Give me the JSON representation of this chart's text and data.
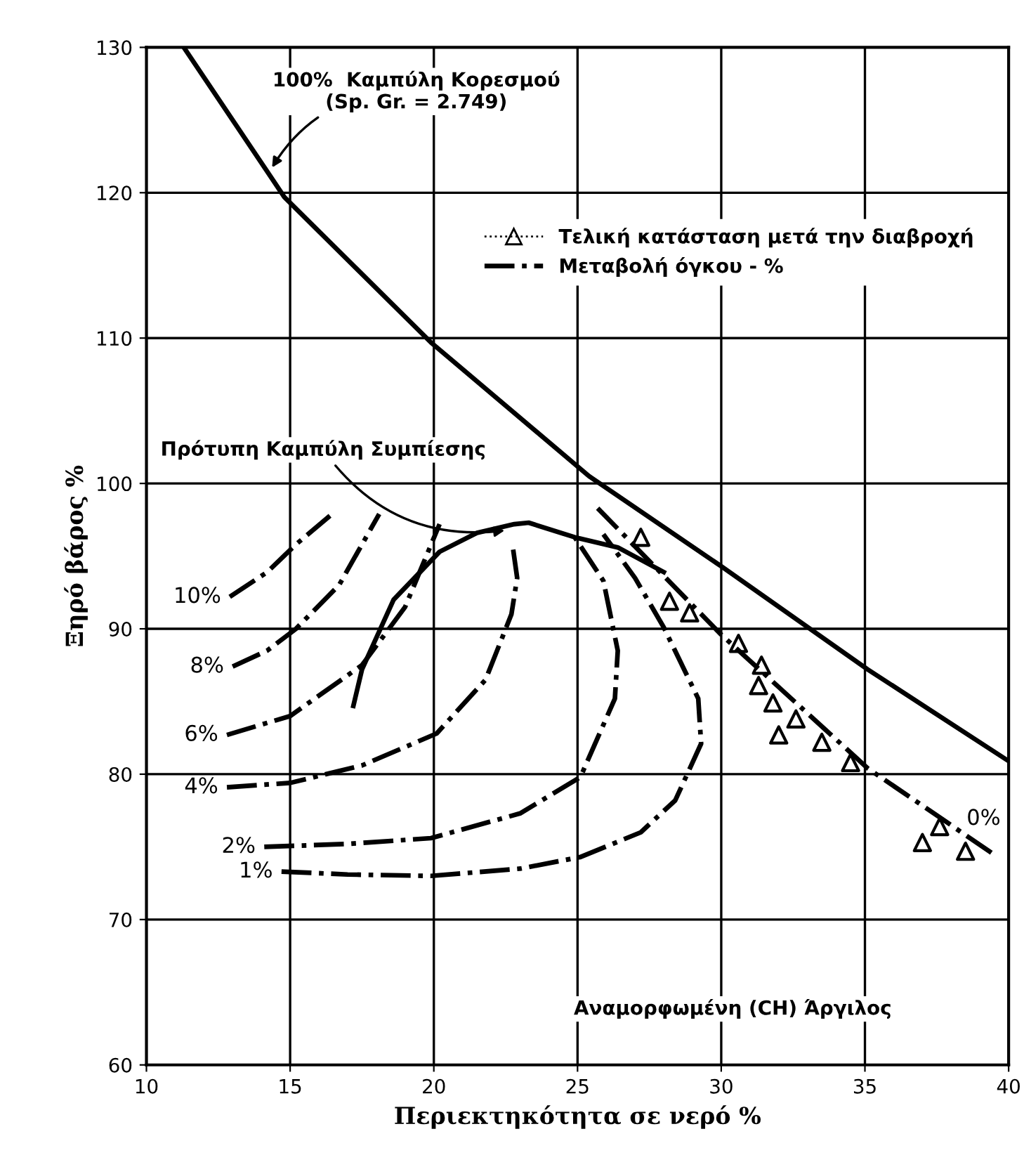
{
  "chart_data": {
    "type": "line",
    "xlabel": "Περιεκτηκότητα σε νερό %",
    "ylabel": "Ξηρό βάρος %",
    "xlim": [
      10,
      40
    ],
    "ylim": [
      60,
      130
    ],
    "xticks": [
      10,
      15,
      20,
      25,
      30,
      35,
      40
    ],
    "yticks": [
      60,
      70,
      80,
      90,
      100,
      110,
      120,
      130
    ],
    "grid": true,
    "legend": "top right",
    "series": [
      {
        "color": "#000000",
        "line_style": "solid",
        "marker": "none",
        "x": [
          11.3,
          14.8,
          19.9,
          25.4,
          30,
          35.1,
          40
        ],
        "values": [
          130,
          119.7,
          109.7,
          100.5,
          94.3,
          87.2,
          80.9
        ]
      },
      {
        "color": "#000000",
        "line_style": "solid",
        "marker": "none",
        "x": [
          17.2,
          17.5,
          18.6,
          20.2,
          21.5,
          22.8,
          23.3,
          24.9,
          26.4,
          28.0
        ],
        "values": [
          84.7,
          87.2,
          92,
          95.3,
          96.6,
          97.2,
          97.3,
          96.3,
          95.6,
          93.9
        ]
      },
      {
        "name": "10%",
        "color": "#000000",
        "line_style": "dashdot",
        "marker": "none",
        "x": [
          12.9,
          14.2,
          15.2,
          16.4
        ],
        "values": [
          92.2,
          93.9,
          95.8,
          97.8
        ]
      },
      {
        "name": "8%",
        "color": "#000000",
        "line_style": "dashdot",
        "marker": "none",
        "x": [
          13.0,
          14.2,
          15.2,
          16.7,
          18.1
        ],
        "values": [
          87.4,
          88.5,
          90,
          93,
          97.9
        ]
      },
      {
        "name": "6%",
        "color": "#000000",
        "line_style": "dashdot",
        "marker": "none",
        "x": [
          12.8,
          15.0,
          17.5,
          19.0,
          20.2
        ],
        "values": [
          82.7,
          84,
          87.5,
          91.5,
          97.2
        ]
      },
      {
        "name": "4%",
        "color": "#000000",
        "line_style": "dashdot",
        "marker": "none",
        "x": [
          12.8,
          15.0,
          17.5,
          20.1,
          21.8,
          22.7,
          22.9,
          22.75
        ],
        "values": [
          79.1,
          79.4,
          80.6,
          82.8,
          86.5,
          91,
          93.5,
          95.6
        ]
      },
      {
        "name": "2%",
        "color": "#000000",
        "line_style": "dashdot",
        "marker": "none",
        "x": [
          14.1,
          17.0,
          19.9,
          23.0,
          25.1,
          26.3,
          26.4,
          25.9,
          24.9
        ],
        "values": [
          75,
          75.2,
          75.6,
          77.3,
          79.8,
          85.2,
          88.5,
          93.3,
          96.3
        ]
      },
      {
        "name": "1%",
        "color": "#000000",
        "line_style": "dashdot",
        "marker": "none",
        "x": [
          14.7,
          17.0,
          19.9,
          23.0,
          25.1,
          27.2,
          28.4,
          29.3,
          29.2,
          28.0,
          27.0,
          25.9
        ],
        "values": [
          73.3,
          73.1,
          73.0,
          73.5,
          74.3,
          76.0,
          78.2,
          82.1,
          85.2,
          90.1,
          93.5,
          96.5
        ]
      },
      {
        "name": "0%",
        "color": "#000000",
        "line_style": "dashdot",
        "marker": "none",
        "x": [
          39.4,
          35.1,
          30,
          25.7
        ],
        "values": [
          74.6,
          80.4,
          89.6,
          98.3
        ]
      },
      {
        "name": "Τελική κατάσταση μετά την διαβροχή",
        "type": "scatter",
        "color": "#000000",
        "marker": "triangle",
        "line_style": "dotted",
        "x": [
          27.2,
          28.2,
          28.9,
          30.6,
          31.4,
          31.3,
          31.8,
          32.0,
          32.6,
          33.5,
          34.5,
          37.0,
          37.6,
          38.5
        ],
        "values": [
          96.3,
          91.9,
          91.1,
          89.0,
          87.5,
          86.1,
          84.9,
          82.7,
          83.8,
          82.2,
          80.8,
          75.3,
          76.4,
          74.7
        ]
      }
    ],
    "annotations": [
      {
        "text": "100%  Καμπύλη Κορεσμού\n(Sp. Gr. = 2.749)",
        "x": 14.3,
        "y": 121.5
      },
      {
        "text": "Πρότυπη Καμπύλη Συμπίεσης",
        "x": 22.6,
        "y": 96.8
      },
      "Αναμορφωμένη (CH) Άργιλος",
      "Μεταβολή όγκου - %"
    ]
  }
}
